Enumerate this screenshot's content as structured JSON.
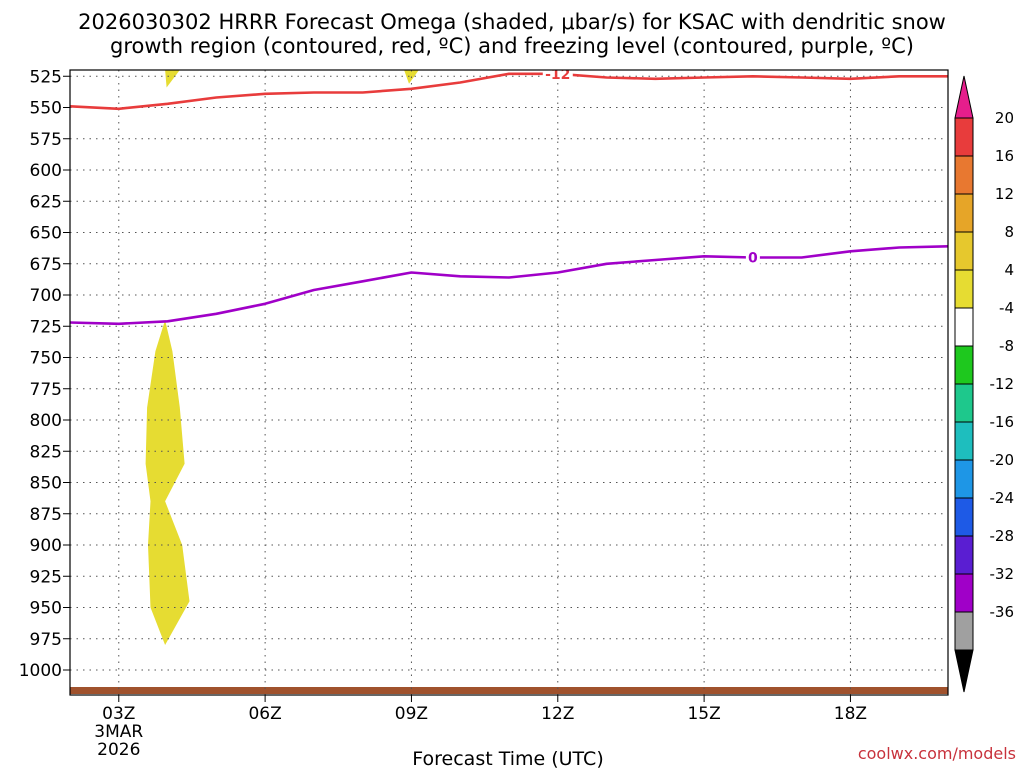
{
  "chart_data": {
    "type": "time-height",
    "title_line1": "2026030302 HRRR Forecast Omega (shaded, μbar/s) for KSAC with dendritic snow",
    "title_line2": "growth region (contoured, red, ºC) and freezing level (contoured, purple, ºC)",
    "xlabel": "Forecast Time (UTC)",
    "credit": "coolwx.com/models",
    "x_range_hours": [
      2,
      20
    ],
    "y_range_hpa": [
      1020,
      520
    ],
    "y_ticks": [
      525,
      550,
      575,
      600,
      625,
      650,
      675,
      700,
      725,
      750,
      775,
      800,
      825,
      850,
      875,
      900,
      925,
      950,
      975,
      1000
    ],
    "x_ticks": [
      {
        "hour": 3,
        "label": "03Z",
        "sub1": "3MAR",
        "sub2": "2026"
      },
      {
        "hour": 6,
        "label": "06Z"
      },
      {
        "hour": 9,
        "label": "09Z"
      },
      {
        "hour": 12,
        "label": "12Z"
      },
      {
        "hour": 15,
        "label": "15Z"
      },
      {
        "hour": 18,
        "label": "18Z"
      }
    ],
    "contours": [
      {
        "name": "dendritic-growth-minus12",
        "label": "-12",
        "label_hour": 12,
        "color": "#e83c3c",
        "points": [
          [
            2,
            549
          ],
          [
            3,
            551
          ],
          [
            4,
            547
          ],
          [
            5,
            542
          ],
          [
            6,
            539
          ],
          [
            7,
            538
          ],
          [
            8,
            538
          ],
          [
            9,
            535
          ],
          [
            10,
            530
          ],
          [
            11,
            523
          ],
          [
            12,
            523
          ],
          [
            13,
            526
          ],
          [
            14,
            527
          ],
          [
            15,
            526
          ],
          [
            16,
            525
          ],
          [
            17,
            526
          ],
          [
            18,
            527
          ],
          [
            19,
            525
          ],
          [
            20,
            525
          ]
        ]
      },
      {
        "name": "freezing-level-0",
        "label": "0",
        "label_hour": 16,
        "color": "#a000c8",
        "points": [
          [
            2,
            722
          ],
          [
            3,
            723
          ],
          [
            4,
            721
          ],
          [
            5,
            715
          ],
          [
            6,
            707
          ],
          [
            7,
            696
          ],
          [
            8,
            689
          ],
          [
            9,
            682
          ],
          [
            10,
            685
          ],
          [
            11,
            686
          ],
          [
            12,
            682
          ],
          [
            13,
            675
          ],
          [
            14,
            672
          ],
          [
            15,
            669
          ],
          [
            16,
            670
          ],
          [
            17,
            670
          ],
          [
            18,
            665
          ],
          [
            19,
            662
          ],
          [
            20,
            661
          ]
        ]
      }
    ],
    "shaded_regions": [
      {
        "name": "omega-4-8-top-left",
        "color": "#e6dc32",
        "points": [
          [
            3.95,
            520
          ],
          [
            4.25,
            520
          ],
          [
            3.98,
            534
          ]
        ]
      },
      {
        "name": "omega-4-8-top-mid",
        "color": "#e6dc32",
        "points": [
          [
            8.85,
            520
          ],
          [
            9.15,
            520
          ],
          [
            8.95,
            531
          ]
        ]
      },
      {
        "name": "omega-4-8-column",
        "color": "#e6dc32",
        "points": [
          [
            3.95,
            720
          ],
          [
            4.1,
            745
          ],
          [
            4.25,
            790
          ],
          [
            4.35,
            835
          ],
          [
            3.95,
            865
          ],
          [
            4.3,
            900
          ],
          [
            4.45,
            945
          ],
          [
            3.95,
            980
          ],
          [
            3.65,
            950
          ],
          [
            3.6,
            900
          ],
          [
            3.65,
            865
          ],
          [
            3.55,
            835
          ],
          [
            3.58,
            790
          ],
          [
            3.75,
            745
          ]
        ]
      }
    ],
    "terrain_color": "#a0522d",
    "colorbar": {
      "ticks": [
        "20",
        "16",
        "12",
        "8",
        "4",
        "-4",
        "-8",
        "-12",
        "-16",
        "-20",
        "-24",
        "-28",
        "-32",
        "-36"
      ],
      "colors": [
        "#e83c3c",
        "#e87830",
        "#e6a528",
        "#e6c82d",
        "#e6dc32",
        "#ffffff",
        "#1ec81e",
        "#1ec88c",
        "#1ebebe",
        "#1e96e6",
        "#1e5ae6",
        "#5a1ed2",
        "#a000c8",
        "#a0a0a0"
      ],
      "top_arrow_color": "#e61e8c",
      "bottom_arrow_color": "#000000"
    }
  }
}
